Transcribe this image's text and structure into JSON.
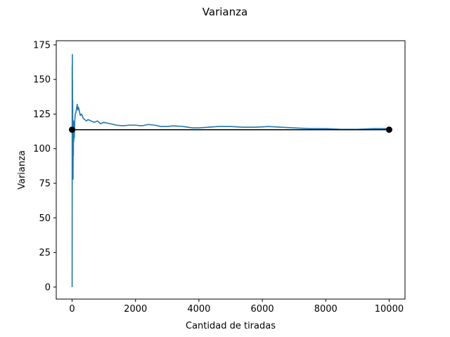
{
  "chart_data": {
    "type": "line",
    "title": "Varianza",
    "xlabel": "Cantidad de tiradas",
    "ylabel": "Varianza",
    "xlim": [
      -500,
      10500
    ],
    "ylim": [
      -8.7,
      178
    ],
    "xticks": [
      0,
      2000,
      4000,
      6000,
      8000,
      10000
    ],
    "yticks": [
      0,
      25,
      50,
      75,
      100,
      125,
      150,
      175
    ],
    "grid": false,
    "series": [
      {
        "color": "#1f77b4",
        "x": [
          1,
          2,
          3,
          5,
          8,
          10,
          12,
          15,
          18,
          20,
          25,
          30,
          35,
          40,
          45,
          50,
          60,
          70,
          80,
          90,
          100,
          120,
          140,
          160,
          180,
          200,
          230,
          260,
          300,
          350,
          400,
          450,
          500,
          600,
          700,
          800,
          900,
          1000,
          1200,
          1400,
          1600,
          1800,
          2000,
          2200,
          2400,
          2600,
          2800,
          3000,
          3200,
          3500,
          3800,
          4000,
          4300,
          4600,
          5000,
          5400,
          5800,
          6200,
          6600,
          7000,
          7500,
          8000,
          8500,
          9000,
          9500,
          10000
        ],
        "y": [
          0,
          40,
          160,
          120,
          168,
          100,
          150,
          80,
          135,
          110,
          95,
          78,
          112,
          95,
          120,
          105,
          115,
          108,
          118,
          122,
          125,
          126,
          129,
          132,
          128,
          130,
          127,
          124,
          125,
          122,
          121,
          120,
          121,
          120,
          119,
          120,
          118,
          119,
          118,
          117,
          116.5,
          117,
          117,
          116.5,
          117.5,
          117,
          116,
          116,
          116.5,
          116,
          115,
          115,
          115.5,
          116,
          116,
          115.5,
          115.5,
          116,
          115.5,
          115,
          114.5,
          114.5,
          114,
          114,
          114.5,
          114.5
        ]
      },
      {
        "color": "#000000",
        "x": [
          0,
          10000
        ],
        "y": [
          113.7,
          113.7
        ],
        "markers": true
      }
    ]
  }
}
